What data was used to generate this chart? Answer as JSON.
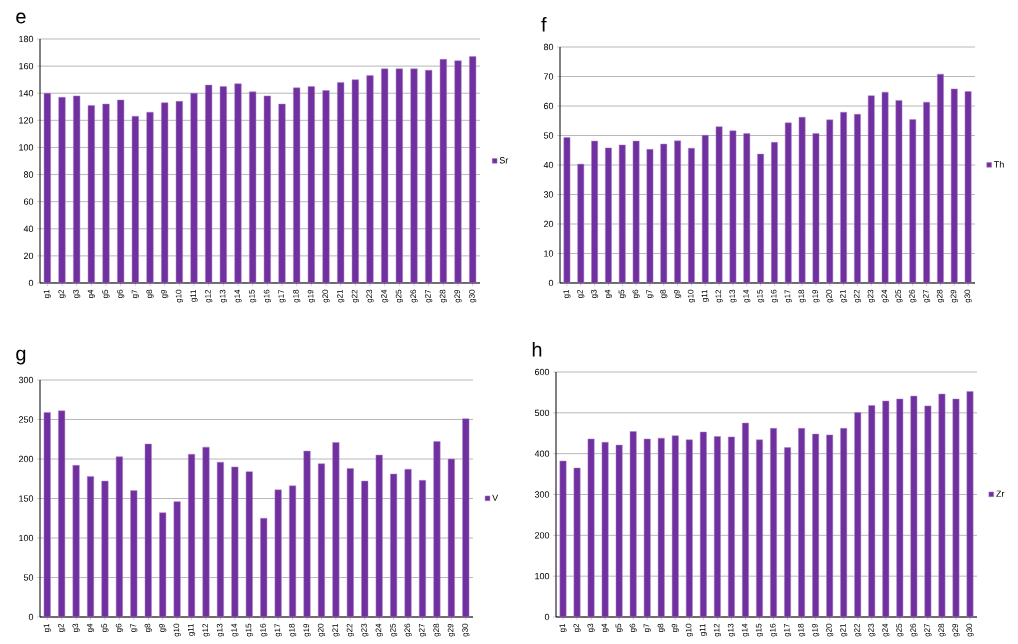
{
  "chart_data": [
    {
      "type": "bar",
      "title": "e",
      "categories": [
        "g1",
        "g2",
        "g3",
        "g4",
        "g5",
        "g6",
        "g7",
        "g8",
        "g9",
        "g10",
        "g11",
        "g12",
        "g13",
        "g14",
        "g15",
        "g16",
        "g17",
        "g18",
        "g19",
        "g20",
        "g21",
        "g22",
        "g23",
        "g24",
        "g25",
        "g26",
        "g27",
        "g28",
        "g29",
        "g30"
      ],
      "series": [
        {
          "name": "Sr",
          "color": "#7030a0",
          "values": [
            140,
            137,
            138,
            131,
            132,
            135,
            123,
            126,
            133,
            134,
            140,
            146,
            145,
            147,
            141,
            138,
            132,
            144,
            145,
            142,
            148,
            150,
            153,
            158,
            158,
            158,
            157,
            165,
            164,
            167
          ]
        }
      ],
      "ylim": [
        0,
        180
      ],
      "yticks": [
        0,
        20,
        40,
        60,
        80,
        100,
        120,
        140,
        160,
        180
      ],
      "grid": "y",
      "legend": "right"
    },
    {
      "type": "bar",
      "title": "f",
      "categories": [
        "g1",
        "g2",
        "g3",
        "g4",
        "g5",
        "g6",
        "g7",
        "g8",
        "g9",
        "g10",
        "g11",
        "g12",
        "g13",
        "g14",
        "g15",
        "g16",
        "g17",
        "g18",
        "g19",
        "g20",
        "g21",
        "g22",
        "g23",
        "g24",
        "g25",
        "g26",
        "g27",
        "g28",
        "g29",
        "g30"
      ],
      "series": [
        {
          "name": "Th",
          "color": "#7030a0",
          "values": [
            49.3,
            40.3,
            48.1,
            45.8,
            46.8,
            48.1,
            45.3,
            47.1,
            48.2,
            45.7,
            50.1,
            53,
            51.6,
            50.7,
            43.7,
            47.7,
            54.3,
            56.2,
            50.7,
            55.3,
            57.9,
            57.2,
            63.5,
            64.7,
            61.9,
            55.4,
            61.3,
            70.8,
            65.8,
            64.9
          ]
        }
      ],
      "ylim": [
        0,
        80
      ],
      "yticks": [
        0,
        10,
        20,
        30,
        40,
        50,
        60,
        70,
        80
      ],
      "grid": "y",
      "legend": "right"
    },
    {
      "type": "bar",
      "title": "g",
      "categories": [
        "g1",
        "g2",
        "g3",
        "g4",
        "g5",
        "g6",
        "g7",
        "g8",
        "g9",
        "g10",
        "g11",
        "g12",
        "g13",
        "g14",
        "g15",
        "g16",
        "g17",
        "g18",
        "g19",
        "g20",
        "g21",
        "g22",
        "g23",
        "g24",
        "g25",
        "g26",
        "g27",
        "g28",
        "g29",
        "g30"
      ],
      "series": [
        {
          "name": "V",
          "color": "#7030a0",
          "values": [
            259,
            261,
            192,
            178,
            172,
            203,
            160,
            219,
            132,
            146,
            206,
            215,
            196,
            190,
            184,
            125,
            161,
            166,
            210,
            194,
            221,
            188,
            172,
            205,
            181,
            187,
            173,
            222,
            200,
            251
          ]
        }
      ],
      "ylim": [
        0,
        300
      ],
      "yticks": [
        0,
        50,
        100,
        150,
        200,
        250,
        300
      ],
      "grid": "y",
      "legend": "right"
    },
    {
      "type": "bar",
      "title": "h",
      "categories": [
        "g1",
        "g2",
        "g3",
        "g4",
        "g5",
        "g6",
        "g7",
        "g8",
        "g9",
        "g10",
        "g11",
        "g12",
        "g13",
        "g14",
        "g15",
        "g16",
        "g17",
        "g18",
        "g19",
        "g20",
        "g21",
        "g22",
        "g23",
        "g24",
        "g25",
        "g26",
        "g27",
        "g28",
        "g29",
        "g30"
      ],
      "series": [
        {
          "name": "Zr",
          "color": "#7030a0",
          "values": [
            382,
            365,
            436,
            428,
            421,
            454,
            436,
            438,
            444,
            434,
            453,
            442,
            441,
            475,
            434,
            462,
            415,
            462,
            448,
            446,
            462,
            501,
            518,
            529,
            534,
            541,
            517,
            546,
            534,
            552
          ]
        }
      ],
      "ylim": [
        0,
        600
      ],
      "yticks": [
        0,
        100,
        200,
        300,
        400,
        500,
        600
      ],
      "grid": "y",
      "legend": "right"
    }
  ]
}
